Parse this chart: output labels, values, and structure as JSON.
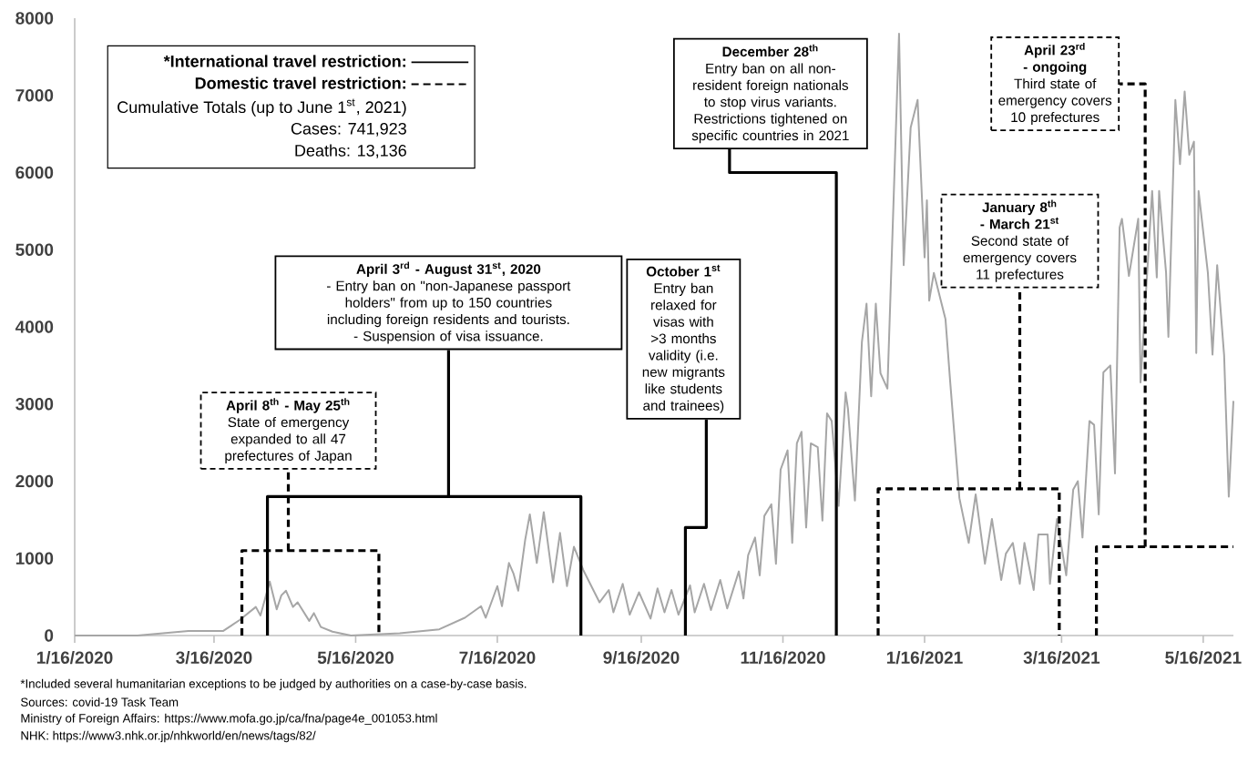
{
  "chart_data": {
    "type": "line",
    "xlim": [
      "2020-01-16",
      "2021-05-29"
    ],
    "xticks": [
      {
        "value": "2020-01-16",
        "label": "1/16/2020"
      },
      {
        "value": "2020-03-16",
        "label": "3/16/2020"
      },
      {
        "value": "2020-05-16",
        "label": "5/16/2020"
      },
      {
        "value": "2020-07-16",
        "label": "7/16/2020"
      },
      {
        "value": "2020-09-16",
        "label": "9/16/2020"
      },
      {
        "value": "2020-11-16",
        "label": "11/16/2020"
      },
      {
        "value": "2021-01-16",
        "label": "1/16/2021"
      },
      {
        "value": "2021-03-16",
        "label": "3/16/2021"
      },
      {
        "value": "2021-05-16",
        "label": "5/16/2021"
      }
    ],
    "ylim": [
      0,
      8000
    ],
    "yticks": [
      0,
      1000,
      2000,
      3000,
      4000,
      5000,
      6000,
      7000,
      8000
    ],
    "legend": "top left",
    "series": [
      {
        "color": "#a6a6a6",
        "x": [
          "2020-01-16",
          "2020-02-12",
          "2020-03-05",
          "2020-03-20",
          "2020-03-27",
          "2020-04-03",
          "2020-04-05",
          "2020-04-09",
          "2020-04-12",
          "2020-04-14",
          "2020-04-16",
          "2020-04-19",
          "2020-04-21",
          "2020-04-26",
          "2020-04-28",
          "2020-05-01",
          "2020-05-06",
          "2020-05-14",
          "2020-06-04",
          "2020-06-21",
          "2020-07-02",
          "2020-07-09",
          "2020-07-11",
          "2020-07-16",
          "2020-07-18",
          "2020-07-21",
          "2020-07-23",
          "2020-07-25",
          "2020-07-28",
          "2020-07-30",
          "2020-08-02",
          "2020-08-05",
          "2020-08-09",
          "2020-08-12",
          "2020-08-15",
          "2020-08-18",
          "2020-08-22",
          "2020-08-29",
          "2020-09-02",
          "2020-09-04",
          "2020-09-08",
          "2020-09-11",
          "2020-09-15",
          "2020-09-20",
          "2020-09-23",
          "2020-09-26",
          "2020-09-29",
          "2020-10-02",
          "2020-10-07",
          "2020-10-09",
          "2020-10-13",
          "2020-10-16",
          "2020-10-20",
          "2020-10-23",
          "2020-10-28",
          "2020-10-30",
          "2020-11-01",
          "2020-11-04",
          "2020-11-06",
          "2020-11-08",
          "2020-11-11",
          "2020-11-13",
          "2020-11-15",
          "2020-11-18",
          "2020-11-20",
          "2020-11-22",
          "2020-11-24",
          "2020-11-26",
          "2020-11-28",
          "2020-12-01",
          "2020-12-03",
          "2020-12-05",
          "2020-12-07",
          "2020-12-10",
          "2020-12-13",
          "2020-12-14",
          "2020-12-17",
          "2020-12-20",
          "2020-12-22",
          "2020-12-24",
          "2020-12-26",
          "2020-12-28",
          "2020-12-31",
          "2021-01-05",
          "2021-01-07",
          "2021-01-10",
          "2021-01-13",
          "2021-01-16",
          "2021-01-17",
          "2021-01-18",
          "2021-01-20",
          "2021-01-25",
          "2021-01-27",
          "2021-01-31",
          "2021-02-04",
          "2021-02-07",
          "2021-02-11",
          "2021-02-14",
          "2021-02-18",
          "2021-02-20",
          "2021-02-23",
          "2021-02-26",
          "2021-02-28",
          "2021-03-04",
          "2021-03-06",
          "2021-03-10",
          "2021-03-11",
          "2021-03-14",
          "2021-03-18",
          "2021-03-21",
          "2021-03-23",
          "2021-03-25",
          "2021-03-28",
          "2021-03-30",
          "2021-04-01",
          "2021-04-03",
          "2021-04-06",
          "2021-04-08",
          "2021-04-10",
          "2021-04-11",
          "2021-04-14",
          "2021-04-18",
          "2021-04-19",
          "2021-04-24",
          "2021-04-26",
          "2021-04-27",
          "2021-04-30",
          "2021-05-01",
          "2021-05-04",
          "2021-05-06",
          "2021-05-08",
          "2021-05-10",
          "2021-05-12",
          "2021-05-13",
          "2021-05-14",
          "2021-05-18",
          "2021-05-20",
          "2021-05-22",
          "2021-05-25",
          "2021-05-27",
          "2021-05-29"
        ],
        "values": [
          0,
          0,
          60,
          60,
          200,
          370,
          260,
          700,
          340,
          520,
          580,
          370,
          430,
          190,
          290,
          110,
          50,
          0,
          30,
          80,
          230,
          380,
          230,
          640,
          380,
          940,
          800,
          580,
          1240,
          1570,
          940,
          1600,
          690,
          1330,
          640,
          1150,
          850,
          430,
          590,
          300,
          670,
          270,
          560,
          220,
          610,
          300,
          590,
          270,
          650,
          300,
          670,
          330,
          720,
          350,
          830,
          480,
          1040,
          1270,
          780,
          1550,
          1700,
          930,
          2150,
          2400,
          1200,
          2490,
          2640,
          1400,
          2490,
          2440,
          1490,
          2880,
          2780,
          1680,
          3150,
          2940,
          1750,
          3800,
          4300,
          3100,
          4300,
          3400,
          3200,
          7800,
          4800,
          6580,
          6940,
          4900,
          5640,
          4340,
          4700,
          4100,
          3300,
          1780,
          1200,
          1830,
          930,
          1510,
          720,
          1060,
          1200,
          670,
          1200,
          590,
          1310,
          1310,
          670,
          1510,
          780,
          1890,
          2000,
          1270,
          2780,
          2730,
          1570,
          3410,
          3500,
          2100,
          5290,
          5400,
          4660,
          5400,
          3280,
          5760,
          4640,
          5760,
          4700,
          3870,
          6940,
          6110,
          7050,
          6230,
          6400,
          3660,
          5760,
          4700,
          3640,
          4800,
          3630,
          1800,
          3040
        ]
      },
      {
        "name": "*International travel restriction:",
        "color": "#000000",
        "line_style": "solid",
        "x": [
          "2020-04-08",
          "2020-04-08",
          "2020-08-21",
          "2020-08-21"
        ],
        "values": [
          0,
          1800,
          1800,
          0
        ]
      },
      {
        "color": "#000000",
        "line_style": "solid",
        "x": [
          "2020-06-25",
          "2020-06-25"
        ],
        "values": [
          1800,
          3700
        ]
      },
      {
        "color": "#000000",
        "line_style": "solid",
        "x": [
          "2020-10-05",
          "2020-10-05",
          "2020-10-14",
          "2020-10-14"
        ],
        "values": [
          0,
          1400,
          1400,
          2800
        ]
      },
      {
        "color": "#000000",
        "line_style": "solid",
        "x": [
          "2020-12-09",
          "2020-12-09",
          "2020-10-24",
          "2020-10-24"
        ],
        "values": [
          0,
          6000,
          6000,
          6300
        ]
      },
      {
        "name": "Domestic travel restriction:",
        "color": "#000000",
        "line_style": "dashed",
        "x": [
          "2020-03-28",
          "2020-03-28",
          "2020-05-26",
          "2020-05-26"
        ],
        "values": [
          0,
          1100,
          1100,
          0
        ]
      },
      {
        "color": "#000000",
        "line_style": "dashed",
        "x": [
          "2020-04-17",
          "2020-04-17"
        ],
        "values": [
          1100,
          2150
        ]
      },
      {
        "color": "#000000",
        "line_style": "dashed",
        "x": [
          "2020-12-27",
          "2020-12-27",
          "2021-03-15",
          "2021-03-15"
        ],
        "values": [
          0,
          1900,
          1900,
          0
        ]
      },
      {
        "color": "#000000",
        "line_style": "dashed",
        "x": [
          "2021-02-26",
          "2021-02-26"
        ],
        "values": [
          1900,
          4500
        ]
      },
      {
        "color": "#000000",
        "line_style": "dashed",
        "x": [
          "2021-03-31",
          "2021-03-31",
          "2021-05-29"
        ],
        "values": [
          0,
          1150,
          1150
        ]
      },
      {
        "color": "#000000",
        "line_style": "dashed",
        "x": [
          "2021-04-21",
          "2021-04-21",
          "2021-04-10"
        ],
        "values": [
          1150,
          7150,
          7150
        ]
      }
    ],
    "annotations": [
      "Cumulative Totals (up to June 1$^{st}$, 2021)",
      "Cases: 741,923",
      "Deaths: 13,136",
      "April 8$^{th}$ - May 25$^{th}$",
      "State of emergency expanded to all 47 prefectures of Japan",
      "April 3$^{rd}$ - August 31$^{st}$, 2020",
      "- Entry ban on \"non-Japanese passport holders\" from up to 150 countries including foreign residents and tourists.",
      "- Suspension of visa issuance.",
      "October 1$^{st}$",
      "Entry ban relaxed for visas with >3 months validity (i.e. new migrants like students and trainees)",
      "December 28$^{th}$",
      "Entry ban on all non-resident foreign nationals to stop virus variants. Restrictions tightened on specific countries in 2021",
      "January 8$^{th}$ - March 21$^{st}$",
      "Second state of emergency covers 11 prefectures",
      "April 23$^{rd}$ - ongoing",
      "Third state of emergency covers 10 prefectures",
      "*Included several humanitarian exceptions to be judged by authorities on a case-by-case basis.",
      "Sources: covid-19 Task Team",
      "Ministry of Foreign Affairs: https://www.mofa.go.jp/ca/fna/page4e_001053.html",
      "NHK: https://www3.nhk.or.jp/nhkworld/en/news/tags/82/"
    ]
  }
}
